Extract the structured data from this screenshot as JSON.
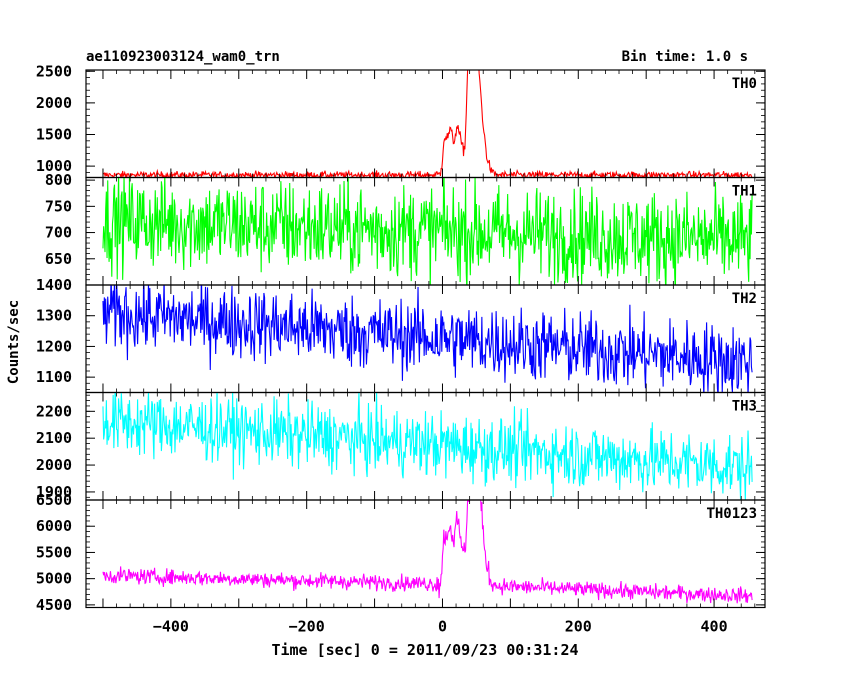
{
  "header": {
    "title": "ae110923003124_wam0_trn",
    "bin_time": "Bin time: 1.0 s"
  },
  "axes": {
    "ylabel": "Counts/sec",
    "xlabel": "Time [sec] 0 = 2011/09/23 00:31:24"
  },
  "chart_data": {
    "type": "line",
    "title": "ae110923003124_wam0_trn",
    "xlabel": "Time [sec] 0 = 2011/09/23 00:31:24",
    "ylabel": "Counts/sec",
    "xlim": [
      -525,
      475
    ],
    "x_range": [
      -500,
      456
    ],
    "x_step": 1,
    "x_ticks": [
      -400,
      -200,
      0,
      200,
      400
    ],
    "grid": false,
    "panels": [
      {
        "name": "TH0",
        "color": "#ff0000",
        "ylim": [
          820,
          2520
        ],
        "y_ticks": [
          1000,
          1500,
          2000,
          2500
        ],
        "baseline": 860,
        "noise": 28,
        "peaks": [
          {
            "t": 3,
            "height": 600
          },
          {
            "t": 12,
            "height": 340
          },
          {
            "t": 22,
            "height": 520
          },
          {
            "t": 38,
            "height": 1620
          },
          {
            "t": 46,
            "height": 1100
          },
          {
            "t": 52,
            "height": 580
          }
        ]
      },
      {
        "name": "TH1",
        "color": "#00ff00",
        "ylim": [
          600,
          805
        ],
        "y_ticks": [
          650,
          700,
          750,
          800
        ],
        "trend": [
          [
            -500,
            722
          ],
          [
            456,
            685
          ]
        ],
        "noise": 45
      },
      {
        "name": "TH2",
        "color": "#0000ff",
        "ylim": [
          1050,
          1400
        ],
        "y_ticks": [
          1100,
          1200,
          1300,
          1400
        ],
        "trend": [
          [
            -500,
            1310
          ],
          [
            456,
            1150
          ]
        ],
        "noise": 60
      },
      {
        "name": "TH3",
        "color": "#00ffff",
        "ylim": [
          1870,
          2270
        ],
        "y_ticks": [
          1900,
          2000,
          2100,
          2200
        ],
        "trend": [
          [
            -500,
            2165
          ],
          [
            456,
            1990
          ]
        ],
        "noise": 62
      },
      {
        "name": "TH0123",
        "color": "#ff00ff",
        "ylim": [
          4450,
          6500
        ],
        "y_ticks": [
          4500,
          5000,
          5500,
          6000,
          6500
        ],
        "trend": [
          [
            -500,
            5060
          ],
          [
            0,
            4900
          ],
          [
            456,
            4670
          ]
        ],
        "noise": 75,
        "peaks": [
          {
            "t": 3,
            "height": 950
          },
          {
            "t": 12,
            "height": 550
          },
          {
            "t": 22,
            "height": 800
          },
          {
            "t": 38,
            "height": 1550
          },
          {
            "t": 46,
            "height": 1300
          },
          {
            "t": 52,
            "height": 800
          }
        ]
      }
    ]
  }
}
